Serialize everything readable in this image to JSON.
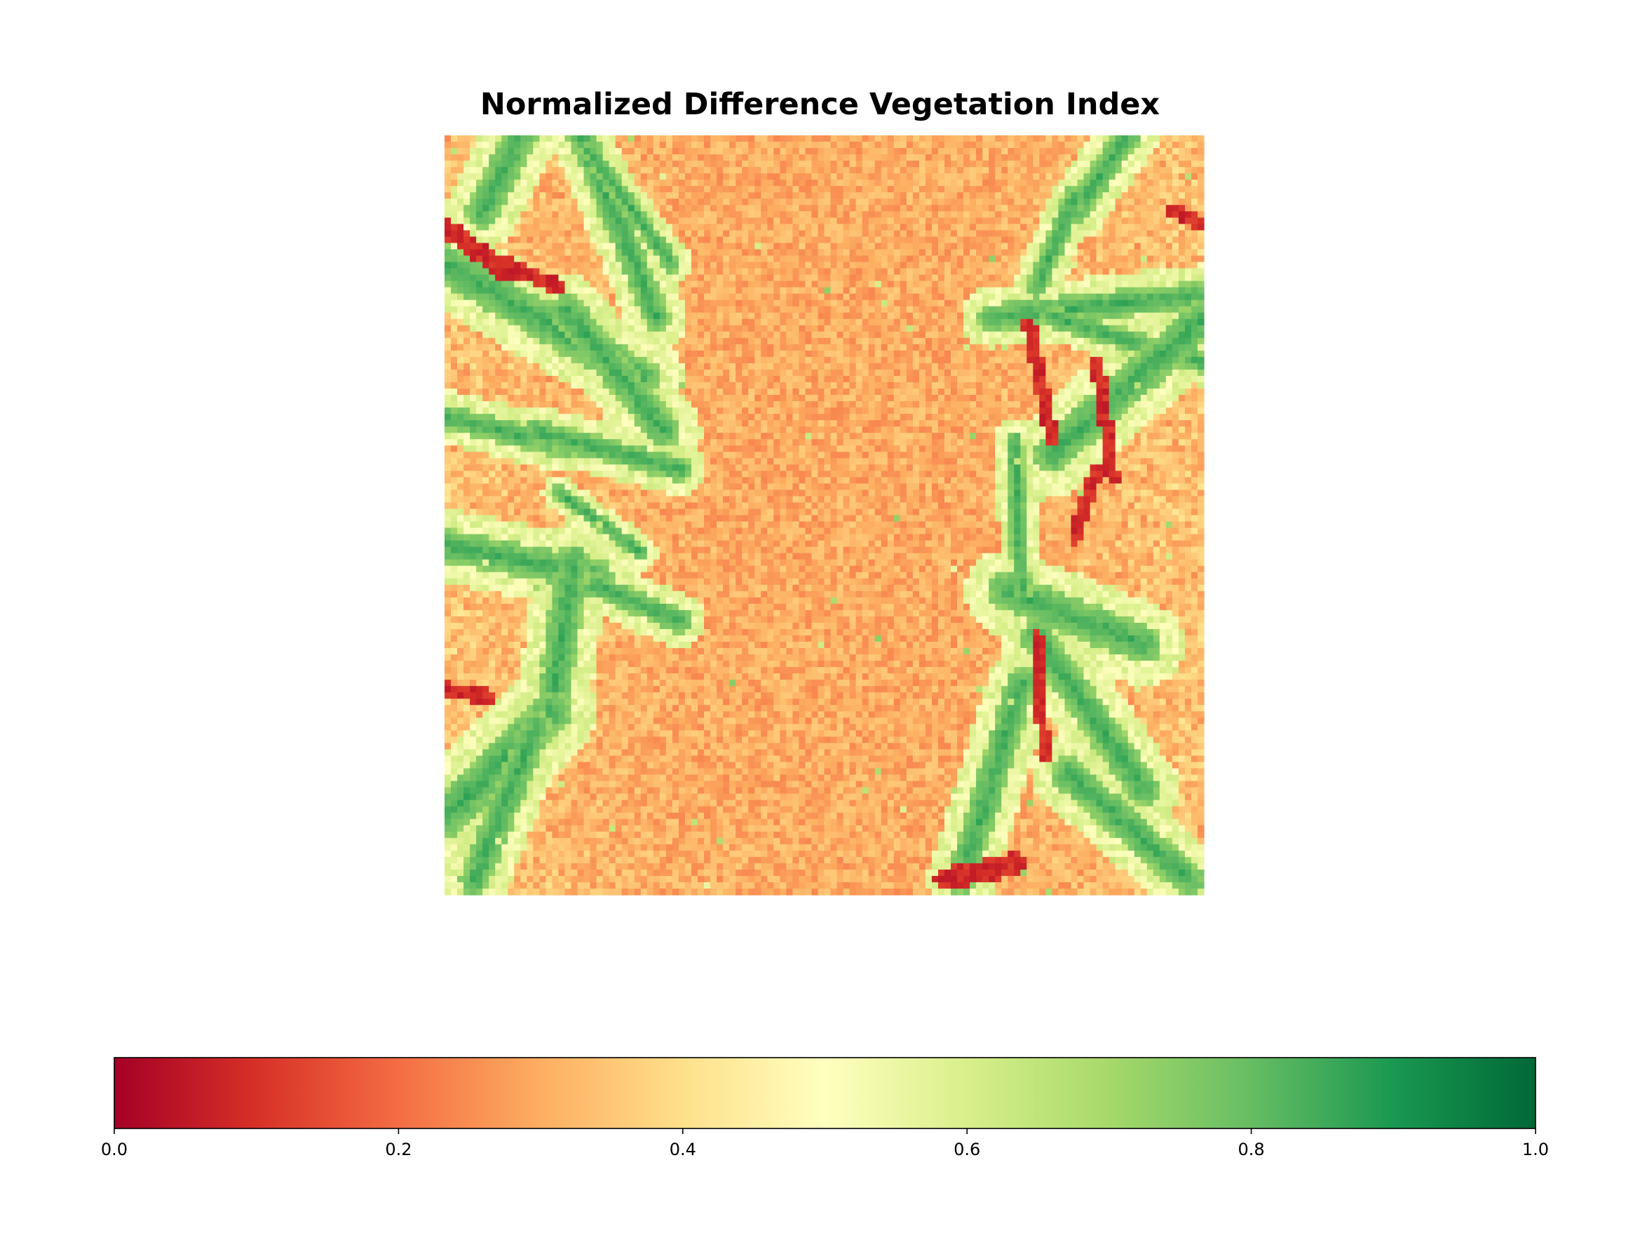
{
  "chart_data": {
    "type": "heatmap",
    "title": "Normalized Difference Vegetation Index",
    "xlabel": "",
    "ylabel": "",
    "axes_visible": false,
    "value_range": [
      0.0,
      1.0
    ],
    "colormap": "RdYlGn",
    "colormap_stops": [
      "#a50026",
      "#d73027",
      "#f46d43",
      "#fdae61",
      "#fee08b",
      "#ffffbf",
      "#d9ef8b",
      "#a6d96a",
      "#66bd63",
      "#1a9850",
      "#006837"
    ],
    "colorbar": {
      "orientation": "horizontal",
      "placement": "bottom",
      "ticks": [
        0.0,
        0.2,
        0.4,
        0.6,
        0.8,
        1.0
      ],
      "tick_labels": [
        "0.0",
        "0.2",
        "0.4",
        "0.6",
        "0.8",
        "1.0"
      ]
    },
    "image_description_values": {
      "background_soil_typical": 0.3,
      "vegetation_strips_typical": 0.85,
      "dark_spots_min": 0.05
    }
  }
}
